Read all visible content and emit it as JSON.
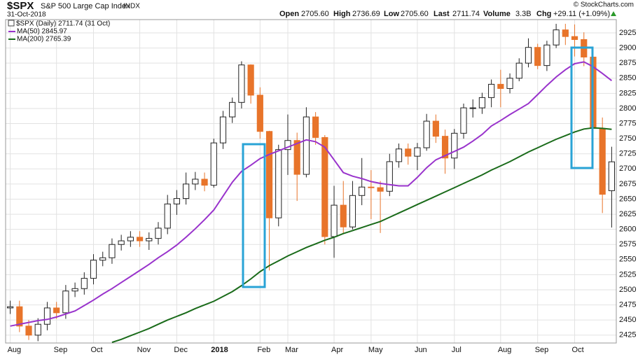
{
  "header": {
    "symbol": "$SPX",
    "name": "S&P 500 Large Cap Index",
    "exchange": "INDX",
    "date": "31-Oct-2018",
    "open_label": "Open",
    "open": "2705.60",
    "high_label": "High",
    "high": "2736.69",
    "low_label": "Low",
    "low": "2705.60",
    "last_label": "Last",
    "last": "2711.74",
    "volume_label": "Volume",
    "volume": "3.3B",
    "chg_label": "Chg",
    "chg": "+29.11 (+1.09%)",
    "credit": "© StockCharts.com"
  },
  "chart_data": {
    "type": "candlestick",
    "categories": [
      "Aug",
      null,
      null,
      null,
      null,
      "Sep",
      null,
      null,
      null,
      "Oct",
      null,
      null,
      null,
      null,
      "Nov",
      null,
      null,
      null,
      "Dec",
      null,
      null,
      null,
      "2018",
      null,
      null,
      null,
      null,
      "Feb",
      null,
      null,
      "Mar",
      null,
      null,
      null,
      null,
      "Apr",
      null,
      null,
      null,
      "May",
      null,
      null,
      null,
      null,
      "Jun",
      null,
      null,
      null,
      "Jul",
      null,
      null,
      null,
      null,
      "Aug",
      null,
      null,
      null,
      "Sep",
      null,
      null,
      null,
      "Oct",
      null,
      null,
      null,
      null
    ],
    "ohlc": {
      "name": "$SPX (Daily) 2711.74 (31 Oct)",
      "up_color": "#222222",
      "down_color": "#e8742a",
      "open": [
        2470,
        2472,
        2440,
        2425,
        2443,
        2470,
        2462,
        2498,
        2502,
        2519,
        2549,
        2553,
        2575,
        2581,
        2587,
        2581,
        2585,
        2602,
        2642,
        2651,
        2675,
        2683,
        2673,
        2743,
        2786,
        2810,
        2872,
        2822,
        2762,
        2619,
        2732,
        2747,
        2691,
        2786,
        2752,
        2588,
        2640,
        2604,
        2656,
        2670,
        2669,
        2663,
        2712,
        2733,
        2721,
        2735,
        2779,
        2754,
        2718,
        2759,
        2801,
        2801,
        2818,
        2840,
        2833,
        2850,
        2875,
        2901,
        2871,
        2905,
        2930,
        2919,
        2914,
        2885,
        2767,
        2664
      ],
      "high": [
        2482,
        2482,
        2450,
        2453,
        2480,
        2480,
        2508,
        2512,
        2529,
        2559,
        2563,
        2585,
        2591,
        2597,
        2597,
        2595,
        2612,
        2657,
        2665,
        2694,
        2695,
        2694,
        2750,
        2796,
        2818,
        2878,
        2873,
        2835,
        2763,
        2740,
        2790,
        2760,
        2802,
        2794,
        2756,
        2672,
        2680,
        2680,
        2718,
        2698,
        2680,
        2725,
        2742,
        2742,
        2743,
        2791,
        2790,
        2765,
        2766,
        2808,
        2815,
        2826,
        2848,
        2864,
        2858,
        2883,
        2916,
        2907,
        2912,
        2940,
        2940,
        2939,
        2926,
        2888,
        2785,
        2736.69
      ],
      "low": [
        2460,
        2430,
        2417,
        2415,
        2433,
        2452,
        2452,
        2488,
        2492,
        2509,
        2539,
        2543,
        2565,
        2571,
        2571,
        2566,
        2575,
        2592,
        2624,
        2641,
        2665,
        2663,
        2669,
        2733,
        2776,
        2800,
        2808,
        2750,
        2532,
        2605,
        2690,
        2647,
        2686,
        2740,
        2575,
        2553,
        2594,
        2600,
        2640,
        2617,
        2594,
        2655,
        2702,
        2707,
        2698,
        2730,
        2743,
        2692,
        2700,
        2750,
        2785,
        2791,
        2802,
        2802,
        2825,
        2845,
        2868,
        2865,
        2862,
        2900,
        2905,
        2886,
        2870,
        2710,
        2627,
        2603
      ],
      "close": [
        2472,
        2440,
        2425,
        2443,
        2470,
        2462,
        2498,
        2502,
        2519,
        2549,
        2553,
        2575,
        2581,
        2587,
        2581,
        2585,
        2602,
        2642,
        2651,
        2675,
        2683,
        2673,
        2743,
        2786,
        2810,
        2872,
        2822,
        2762,
        2619,
        2732,
        2747,
        2691,
        2786,
        2752,
        2588,
        2640,
        2604,
        2656,
        2670,
        2669,
        2663,
        2712,
        2733,
        2721,
        2735,
        2779,
        2754,
        2718,
        2759,
        2801,
        2801,
        2818,
        2840,
        2833,
        2850,
        2875,
        2901,
        2871,
        2905,
        2930,
        2919,
        2914,
        2885,
        2767,
        2658,
        2711.74
      ]
    },
    "series": [
      {
        "name": "MA(50) 2845.97",
        "color": "#9933cc",
        "values": [
          2440,
          2443,
          2446,
          2449,
          2451,
          2455,
          2460,
          2465,
          2474,
          2483,
          2493,
          2502,
          2512,
          2522,
          2532,
          2542,
          2553,
          2563,
          2574,
          2587,
          2601,
          2616,
          2632,
          2655,
          2678,
          2696,
          2706,
          2717,
          2724,
          2730,
          2736,
          2742,
          2748,
          2745,
          2736,
          2715,
          2694,
          2688,
          2684,
          2679,
          2676,
          2674,
          2672,
          2672,
          2686,
          2702,
          2715,
          2722,
          2729,
          2736,
          2746,
          2757,
          2771,
          2780,
          2790,
          2799,
          2808,
          2823,
          2838,
          2852,
          2864,
          2874,
          2877,
          2869,
          2858,
          2845.97
        ]
      },
      {
        "name": "MA(200) 2765.39",
        "color": "#1a6b1a",
        "values": [
          null,
          null,
          null,
          null,
          null,
          null,
          null,
          null,
          null,
          null,
          null,
          2413,
          2418,
          2424,
          2430,
          2436,
          2443,
          2450,
          2456,
          2462,
          2469,
          2475,
          2481,
          2489,
          2497,
          2507,
          2518,
          2530,
          2540,
          2548,
          2556,
          2563,
          2570,
          2576,
          2582,
          2587,
          2593,
          2598,
          2603,
          2608,
          2613,
          2620,
          2627,
          2634,
          2641,
          2648,
          2655,
          2662,
          2669,
          2676,
          2683,
          2690,
          2698,
          2705,
          2712,
          2720,
          2728,
          2735,
          2742,
          2749,
          2755,
          2761,
          2766,
          2768,
          2767,
          2765.39
        ]
      }
    ],
    "ylim": [
      2412,
      2947
    ],
    "yticks": [
      2425,
      2450,
      2475,
      2500,
      2525,
      2550,
      2575,
      2600,
      2625,
      2650,
      2675,
      2700,
      2725,
      2750,
      2775,
      2800,
      2825,
      2850,
      2875,
      2900,
      2925
    ],
    "grid": true
  }
}
